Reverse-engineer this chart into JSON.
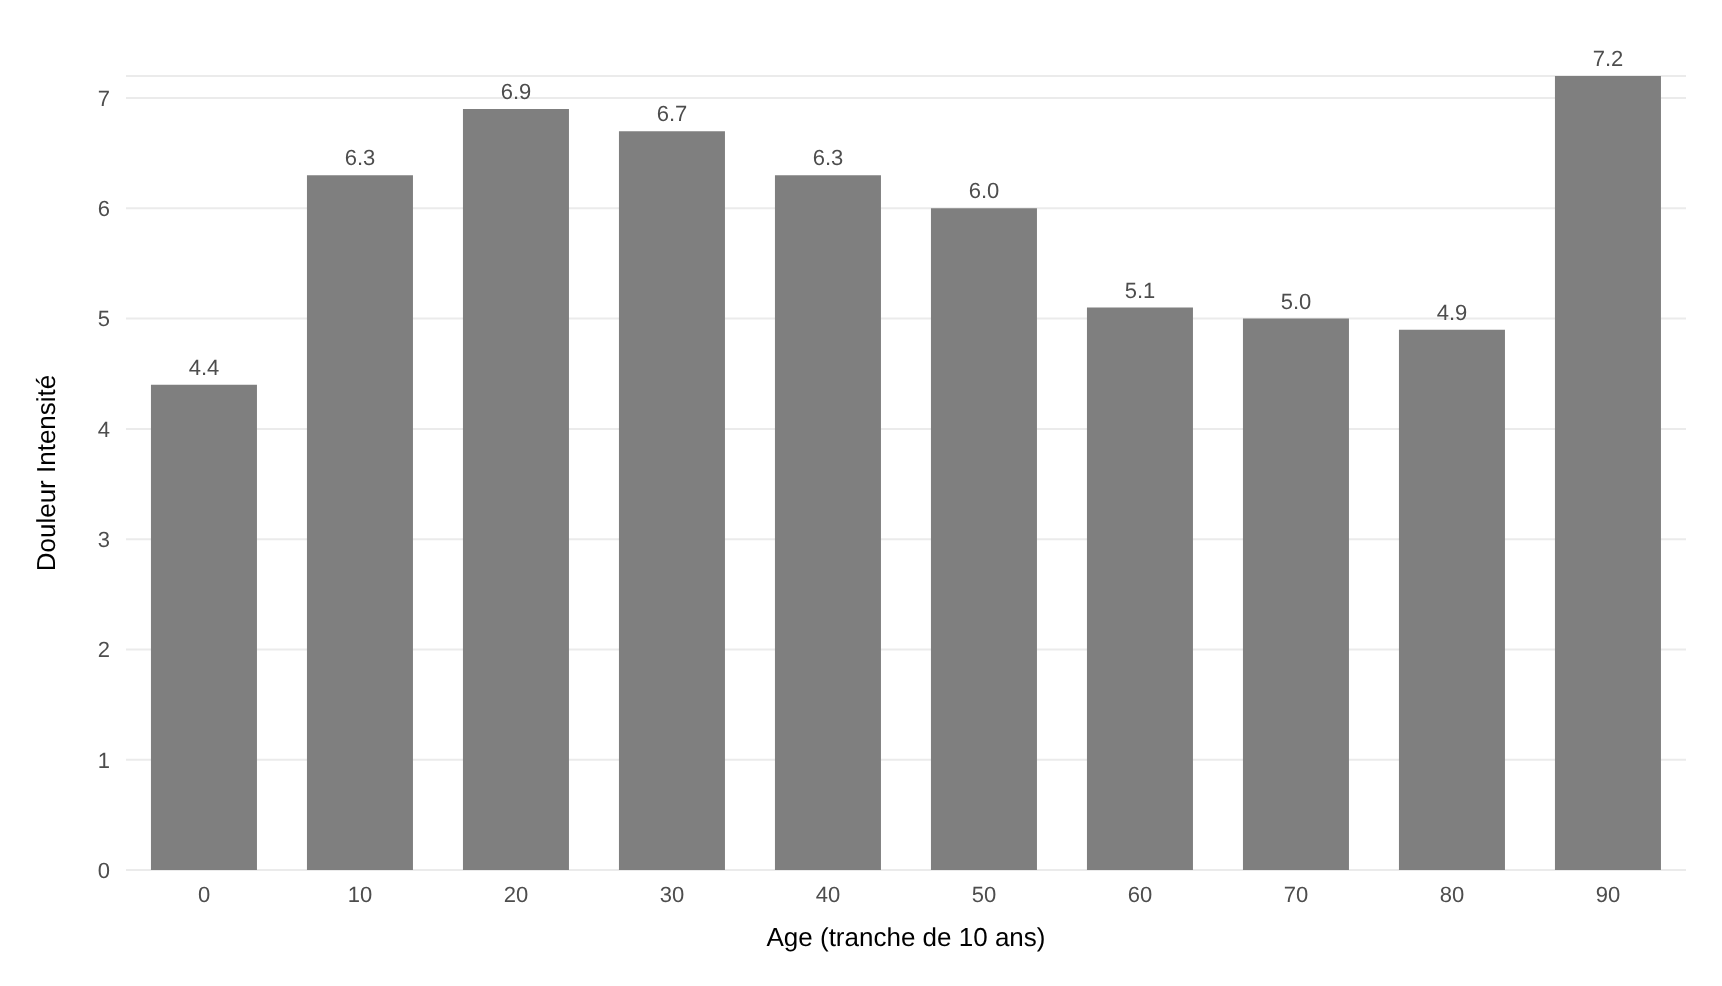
{
  "chart_data": {
    "type": "bar",
    "xlabel": "Age (tranche de 10 ans)",
    "ylabel": "Douleur Intensité",
    "categories": [
      "0",
      "10",
      "20",
      "30",
      "40",
      "50",
      "60",
      "70",
      "80",
      "90"
    ],
    "values": [
      4.4,
      6.3,
      6.9,
      6.7,
      6.3,
      6.0,
      5.1,
      5.0,
      4.9,
      7.2
    ],
    "color": "#7f7f7f",
    "ylim": [
      0,
      7.2
    ],
    "yticks": [
      0,
      1,
      2,
      3,
      4,
      5,
      6,
      7
    ],
    "grid": "y",
    "value_labels": [
      "4.4",
      "6.3",
      "6.9",
      "6.7",
      "6.3",
      "6.0",
      "5.1",
      "5.0",
      "4.9",
      "7.2"
    ]
  }
}
